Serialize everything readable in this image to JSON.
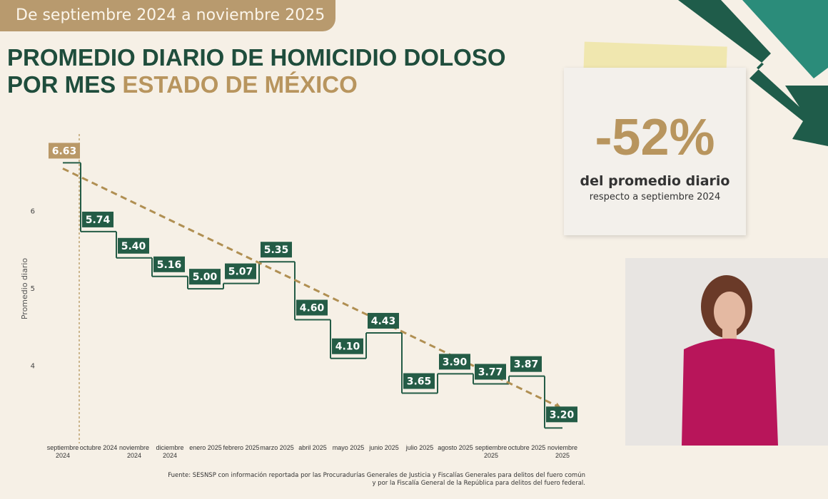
{
  "header": {
    "banner": "De septiembre 2024 a noviembre 2025",
    "title": "PROMEDIO DIARIO DE HOMICIDIO DOLOSO POR MES",
    "title_highlight": "ESTADO DE MÉXICO"
  },
  "card": {
    "value": "-52%",
    "line1": "del promedio diario",
    "line2": "respecto a septiembre 2024"
  },
  "footnote": "Fuente: SESNSP con información reportada por las Procuradurías Generales de Justicia y Fiscalías Generales para delitos del fuero común y por la Fiscalía General de la República para delitos del fuero federal.",
  "chart_data": {
    "type": "step",
    "y_label": "Promedio diario",
    "categories": [
      "septiembre 2024",
      "octubre 2024",
      "noviembre 2024",
      "diciembre 2024",
      "enero 2025",
      "febrero 2025",
      "marzo 2025",
      "abril 2025",
      "mayo 2025",
      "junio 2025",
      "julio 2025",
      "agosto 2025",
      "septiembre 2025",
      "octubre 2025",
      "noviembre 2025"
    ],
    "values": [
      6.63,
      5.74,
      5.4,
      5.16,
      5,
      5.07,
      5.35,
      4.6,
      4.1,
      4.43,
      3.65,
      3.9,
      3.77,
      3.87,
      3.2
    ],
    "value_labels": [
      "6.63",
      "5.74",
      "5.40",
      "5.16",
      "5.00",
      "5.07",
      "5.35",
      "4.60",
      "4.10",
      "4.43",
      "3.65",
      "3.90",
      "3.77",
      "3.87",
      "3.20"
    ],
    "color": "#245c46",
    "start_label_color": "#b99867",
    "trend_color": "#b08f52",
    "ylim": [
      3,
      6.8
    ],
    "yticks": [
      4,
      5,
      6
    ]
  }
}
